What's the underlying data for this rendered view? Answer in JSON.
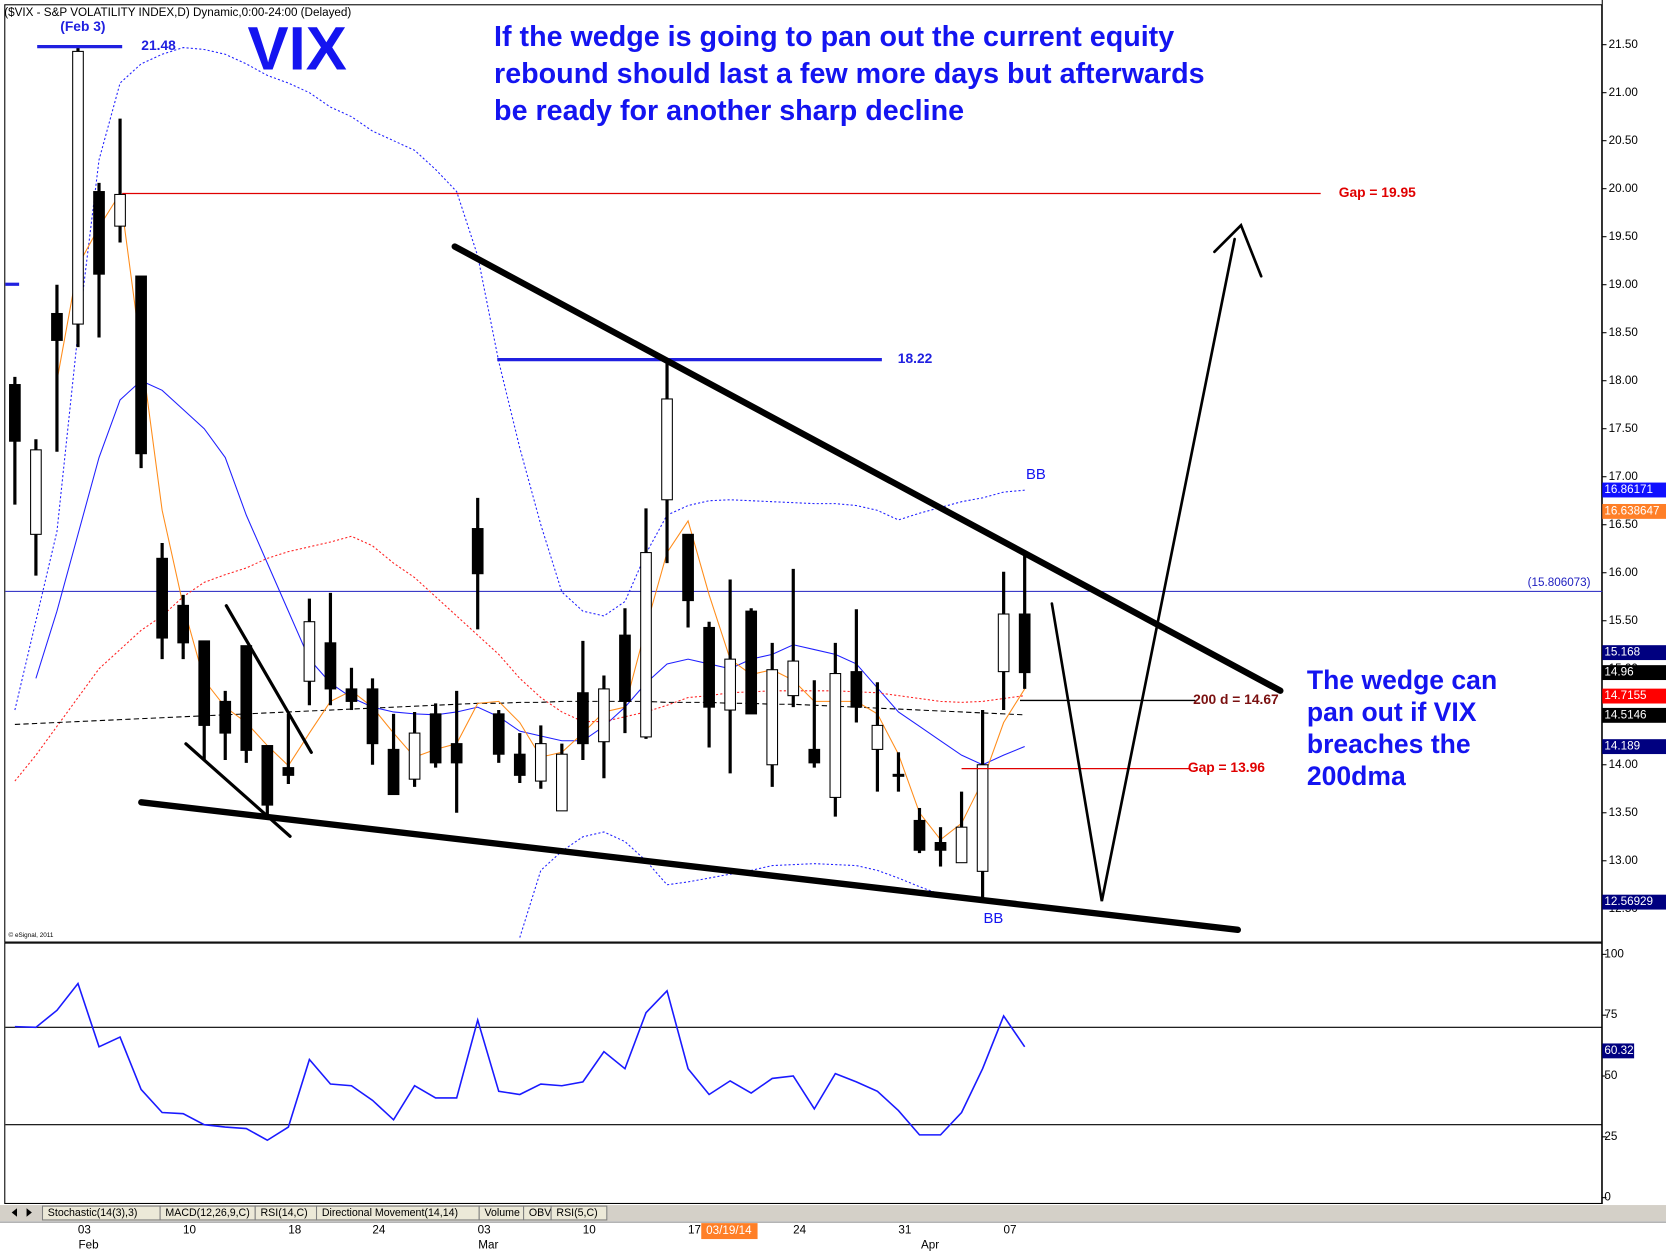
{
  "chart_data": [
    {
      "type": "candlestick",
      "title": "($VIX - S&P VOLATILITY INDEX,D) Dynamic,0:00-24:00 (Delayed)",
      "categories": [
        null,
        null,
        null,
        "03",
        null,
        null,
        null,
        null,
        "10",
        null,
        null,
        null,
        null,
        "18",
        null,
        null,
        null,
        "24",
        null,
        null,
        null,
        null,
        "03",
        null,
        null,
        null,
        null,
        "10",
        null,
        null,
        null,
        null,
        "17",
        null,
        null,
        null,
        null,
        "24",
        null,
        null,
        null,
        null,
        "31",
        null,
        null,
        null,
        null,
        "07",
        null
      ],
      "categories2": [
        null,
        null,
        null,
        "Feb",
        null,
        null,
        null,
        null,
        null,
        null,
        null,
        null,
        null,
        null,
        null,
        null,
        null,
        null,
        null,
        null,
        null,
        null,
        "Mar",
        null,
        null,
        null,
        null,
        null,
        null,
        null,
        null,
        null,
        null,
        null,
        null,
        null,
        null,
        null,
        null,
        null,
        null,
        null,
        null,
        "Apr",
        null,
        null,
        null,
        null,
        null
      ],
      "open": [
        17.96,
        16.4,
        18.7,
        18.59,
        19.97,
        19.61,
        19.09,
        16.15,
        15.66,
        15.29,
        14.66,
        15.24,
        14.2,
        13.97,
        14.87,
        15.27,
        14.79,
        14.79,
        14.16,
        13.85,
        14.53,
        14.22,
        16.46,
        14.53,
        14.11,
        13.83,
        13.52,
        14.75,
        14.24,
        15.35,
        14.29,
        16.76,
        16.4,
        15.43,
        14.57,
        15.6,
        14.0,
        14.72,
        14.16,
        13.66,
        14.97,
        14.16,
        13.9,
        13.42,
        13.19,
        12.98,
        12.89,
        14.97,
        15.57
      ],
      "high": [
        18.04,
        17.39,
        19.0,
        21.48,
        20.06,
        20.73,
        19.09,
        16.31,
        15.77,
        15.29,
        14.77,
        15.24,
        14.2,
        14.53,
        15.73,
        15.79,
        15.01,
        14.9,
        14.53,
        14.55,
        14.64,
        14.77,
        16.78,
        14.57,
        14.33,
        14.41,
        14.22,
        15.29,
        14.93,
        15.63,
        16.67,
        18.22,
        16.4,
        15.49,
        15.93,
        15.63,
        15.27,
        16.04,
        14.88,
        15.27,
        15.62,
        14.86,
        14.13,
        13.55,
        13.35,
        13.72,
        14.57,
        16.01,
        16.19
      ],
      "low": [
        16.71,
        15.97,
        17.26,
        18.35,
        18.45,
        19.44,
        17.09,
        15.1,
        15.1,
        14.05,
        14.05,
        14.02,
        13.46,
        13.8,
        14.62,
        14.62,
        14.57,
        14.0,
        13.69,
        13.77,
        13.97,
        13.5,
        15.41,
        14.02,
        13.81,
        13.75,
        13.52,
        14.05,
        13.86,
        14.33,
        14.27,
        16.1,
        15.43,
        14.18,
        13.91,
        14.53,
        13.77,
        14.6,
        13.97,
        13.46,
        14.44,
        13.72,
        13.72,
        13.08,
        12.94,
        12.98,
        12.61,
        14.57,
        14.79
      ],
      "close": [
        17.37,
        17.28,
        18.42,
        21.43,
        19.11,
        19.94,
        17.24,
        15.32,
        15.27,
        14.41,
        14.33,
        14.15,
        13.58,
        13.89,
        15.49,
        14.79,
        14.66,
        14.22,
        13.69,
        14.33,
        14.02,
        14.02,
        15.99,
        14.11,
        13.89,
        14.22,
        14.11,
        14.22,
        14.79,
        14.66,
        16.21,
        17.81,
        15.71,
        14.6,
        15.1,
        14.53,
        14.99,
        15.08,
        14.02,
        14.95,
        14.6,
        14.41,
        13.88,
        13.11,
        13.11,
        13.35,
        14.0,
        15.57,
        14.96
      ],
      "up_color": "#ffffff",
      "down_color": "#000000",
      "overlays": [
        {
          "color": "#2020ff",
          "style": "dotted",
          "values": [
            14.57,
            15.5,
            16.43,
            18.5,
            20.3,
            21.1,
            21.3,
            21.4,
            21.47,
            21.45,
            21.4,
            21.3,
            21.18,
            21.1,
            21.0,
            20.85,
            20.75,
            20.6,
            20.5,
            20.4,
            20.2,
            19.97,
            19.3,
            18.2,
            17.3,
            16.5,
            15.8,
            15.6,
            15.55,
            15.7,
            16.2,
            16.6,
            16.7,
            16.75,
            16.76,
            16.75,
            16.74,
            16.73,
            16.72,
            16.72,
            16.7,
            16.65,
            16.55,
            16.62,
            16.68,
            16.74,
            16.78,
            16.84,
            16.86
          ]
        },
        {
          "color": "#2020ff",
          "style": "dotted",
          "values": [
            null,
            null,
            null,
            null,
            null,
            null,
            null,
            null,
            null,
            null,
            null,
            null,
            null,
            null,
            null,
            null,
            null,
            null,
            null,
            null,
            null,
            null,
            null,
            null,
            12.2,
            12.9,
            13.1,
            13.25,
            13.3,
            13.2,
            13.0,
            12.75,
            12.78,
            12.82,
            12.86,
            12.9,
            12.95,
            12.96,
            12.97,
            12.96,
            12.95,
            12.9,
            12.82,
            12.73,
            12.65,
            12.6,
            12.57,
            null,
            null
          ]
        },
        {
          "color": "#2020ff",
          "style": "solid",
          "values": [
            null,
            14.9,
            15.6,
            16.4,
            17.2,
            17.8,
            18.0,
            17.9,
            17.7,
            17.5,
            17.2,
            16.6,
            16.1,
            15.6,
            15.1,
            14.85,
            14.7,
            14.6,
            14.55,
            14.53,
            14.52,
            14.55,
            14.6,
            14.5,
            14.35,
            14.3,
            14.25,
            14.25,
            14.4,
            14.6,
            14.85,
            15.05,
            15.1,
            15.05,
            15.0,
            15.1,
            15.15,
            15.25,
            15.2,
            15.15,
            15.05,
            14.8,
            14.55,
            14.4,
            14.25,
            14.1,
            14.0,
            14.1,
            14.19
          ]
        },
        {
          "color": "#ff2020",
          "style": "dotted",
          "values": [
            13.83,
            14.1,
            14.4,
            14.7,
            15.0,
            15.2,
            15.4,
            15.55,
            15.75,
            15.9,
            15.98,
            16.05,
            16.15,
            16.22,
            16.27,
            16.32,
            16.38,
            16.28,
            16.1,
            15.95,
            15.75,
            15.55,
            15.35,
            15.15,
            14.9,
            14.7,
            14.55,
            14.45,
            14.45,
            14.5,
            14.55,
            14.62,
            14.7,
            14.72,
            14.75,
            14.76,
            14.77,
            14.77,
            14.77,
            14.77,
            14.76,
            14.75,
            14.72,
            14.69,
            14.66,
            14.65,
            14.66,
            14.69,
            14.72
          ]
        },
        {
          "color": "#000000",
          "style": "dashed",
          "values": [
            14.42,
            14.43,
            14.44,
            14.45,
            14.46,
            14.47,
            14.48,
            14.49,
            14.5,
            14.51,
            14.52,
            14.53,
            14.54,
            14.55,
            14.56,
            14.57,
            14.58,
            14.59,
            14.6,
            14.61,
            14.62,
            14.63,
            14.64,
            14.64,
            14.65,
            14.65,
            14.66,
            14.66,
            14.66,
            14.66,
            14.66,
            14.65,
            14.65,
            14.65,
            14.64,
            14.64,
            14.63,
            14.63,
            14.62,
            14.61,
            14.6,
            14.59,
            14.58,
            14.57,
            14.56,
            14.55,
            14.54,
            14.53,
            14.52
          ]
        },
        {
          "color": "#ff8c1a",
          "style": "solid",
          "values": [
            null,
            null,
            18.0,
            19.2,
            19.6,
            19.95,
            18.3,
            16.65,
            15.66,
            14.88,
            14.6,
            14.44,
            14.2,
            13.99,
            14.33,
            14.66,
            14.77,
            14.6,
            14.33,
            14.08,
            14.16,
            14.22,
            14.64,
            14.66,
            14.44,
            14.08,
            14.13,
            14.33,
            14.55,
            14.6,
            15.43,
            16.21,
            16.54,
            15.77,
            15.1,
            14.94,
            14.99,
            14.88,
            14.66,
            14.66,
            14.66,
            14.53,
            14.11,
            13.5,
            13.22,
            13.39,
            13.83,
            14.44,
            14.79
          ]
        }
      ],
      "ylim": [
        12.148,
        21.91
      ],
      "yticks": [
        {
          "value": 12.5,
          "label": "12.50"
        },
        {
          "value": 13,
          "label": "13.00"
        },
        {
          "value": 13.5,
          "label": "13.50"
        },
        {
          "value": 14,
          "label": "14.00"
        },
        {
          "value": 14.5,
          "label": "14.50"
        },
        {
          "value": 15,
          "label": "15.00"
        },
        {
          "value": 15.5,
          "label": "15.50"
        },
        {
          "value": 16,
          "label": "16.00"
        },
        {
          "value": 16.5,
          "label": "16.50"
        },
        {
          "value": 17,
          "label": "17.00"
        },
        {
          "value": 17.5,
          "label": "17.50"
        },
        {
          "value": 18,
          "label": "18.00"
        },
        {
          "value": 18.5,
          "label": "18.50"
        },
        {
          "value": 19,
          "label": "19.00"
        },
        {
          "value": 19.5,
          "label": "19.50"
        },
        {
          "value": 20,
          "label": "20.00"
        },
        {
          "value": 20.5,
          "label": "20.50"
        },
        {
          "value": 21,
          "label": "21.00"
        },
        {
          "value": 21.5,
          "label": "21.50"
        }
      ],
      "hline": {
        "value": 15.806073,
        "label": "(15.806073)",
        "color": "#2020c0"
      },
      "levels": [
        {
          "value": 21.48,
          "note": "(Feb 3)",
          "color": "#2020e0"
        },
        {
          "value": 19.95,
          "label": "Gap = 19.95",
          "color": "#e00000"
        },
        {
          "value": 18.22,
          "color": "#2020e0"
        },
        {
          "value": 14.67,
          "label": "200 d = 14.67",
          "color": "#000000"
        },
        {
          "value": 13.96,
          "label": "Gap = 13.96",
          "color": "#e00000"
        }
      ],
      "last_value_labels": [
        {
          "value": 16.86171,
          "bg": "#1010ff"
        },
        {
          "value": 16.638647,
          "bg": "#ff7f27"
        },
        {
          "value": 15.168,
          "bg": "#000080"
        },
        {
          "value": 14.96,
          "bg": "#000000"
        },
        {
          "value": 14.7155,
          "bg": "#ff0000"
        },
        {
          "value": 14.5146,
          "bg": "#000000"
        },
        {
          "value": 14.189,
          "bg": "#000080"
        },
        {
          "value": 12.56929,
          "bg": "#000080"
        }
      ],
      "big_label": "VIX",
      "text_top": [
        "If the wedge is going to pan out the current equity",
        "rebound should last a few more days but afterwards",
        "be ready for another sharp decline"
      ],
      "text_right": [
        "The wedge can",
        "pan out if VIX",
        "breaches the",
        "200dma"
      ],
      "bb_labels": [
        "BB",
        "BB"
      ],
      "credit": "© eSignal, 2011",
      "cursor_label": "03/19/14"
    },
    {
      "type": "line",
      "values": [
        70.3,
        70,
        77,
        88,
        62,
        66,
        44.5,
        35,
        34.5,
        30,
        29,
        28.4,
        23.6,
        29,
        56.8,
        46.7,
        46,
        40,
        32,
        46,
        41,
        41,
        73,
        43.7,
        42.4,
        46.7,
        46,
        47.6,
        60,
        53,
        76,
        85,
        53,
        42.4,
        48,
        43,
        49,
        50,
        36.5,
        51,
        47.6,
        43.7,
        35.8,
        25.8,
        25.8,
        35,
        53,
        74.7,
        62
      ],
      "color": "#1a1aff",
      "ylim": [
        -2.6,
        104.4
      ],
      "yticks": [
        0,
        25,
        50,
        75,
        100
      ],
      "levels": [
        30,
        70
      ],
      "last_value_label": {
        "value": 60.32,
        "bg": "#000080"
      }
    }
  ],
  "tabs": [
    "Stochastic(14(3),3)",
    "MACD(12,26,9,C)",
    "RSI(14,C)",
    "Directional Movement(14,14)",
    "Volume",
    "OBV",
    "RSI(5,C)"
  ]
}
